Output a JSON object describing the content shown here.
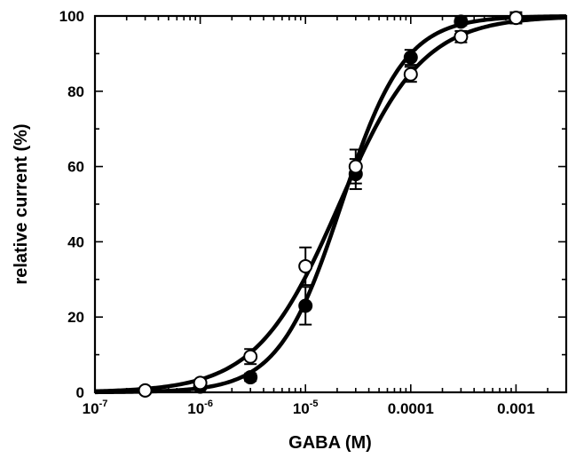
{
  "chart_data": {
    "type": "scatter",
    "title": "",
    "xlabel": "GABA  (M)",
    "ylabel": "relative current (%)",
    "xscale": "log",
    "xlim": [
      1e-07,
      0.003
    ],
    "ylim": [
      0,
      100
    ],
    "grid": false,
    "x_tick_labels": [
      {
        "value": 1e-07,
        "base": "10",
        "exp": "-7"
      },
      {
        "value": 1e-06,
        "base": "10",
        "exp": "-6"
      },
      {
        "value": 1e-05,
        "base": "10",
        "exp": "-5"
      },
      {
        "value": 0.0001,
        "base": "0.0001",
        "exp": ""
      },
      {
        "value": 0.001,
        "base": "0.001",
        "exp": ""
      }
    ],
    "y_tick_labels": [
      "0",
      "20",
      "40",
      "60",
      "80",
      "100"
    ],
    "series": [
      {
        "marker": "filled-circle",
        "points": [
          {
            "x": 3e-07,
            "y": 0.5,
            "err": 0
          },
          {
            "x": 1e-06,
            "y": 1.5,
            "err": 0
          },
          {
            "x": 3e-06,
            "y": 4,
            "err": 1
          },
          {
            "x": 1e-05,
            "y": 23,
            "err": 5
          },
          {
            "x": 3e-05,
            "y": 58,
            "err": 4
          },
          {
            "x": 0.0001,
            "y": 89,
            "err": 2
          },
          {
            "x": 0.0003,
            "y": 98.5,
            "err": 1
          },
          {
            "x": 0.001,
            "y": 99.5,
            "err": 1
          }
        ],
        "fit": {
          "ec50": 2.2e-05,
          "hill": 1.45,
          "bottom": 0,
          "top": 100
        }
      },
      {
        "marker": "open-circle",
        "points": [
          {
            "x": 3e-07,
            "y": 0.5,
            "err": 0
          },
          {
            "x": 1e-06,
            "y": 2.5,
            "err": 0
          },
          {
            "x": 3e-06,
            "y": 9.5,
            "err": 2
          },
          {
            "x": 1e-05,
            "y": 33.5,
            "err": 5
          },
          {
            "x": 3e-05,
            "y": 60,
            "err": 4.5
          },
          {
            "x": 0.0001,
            "y": 84.5,
            "err": 2
          },
          {
            "x": 0.0003,
            "y": 94.5,
            "err": 1.5
          },
          {
            "x": 0.001,
            "y": 99.5,
            "err": 1.5
          }
        ],
        "fit": {
          "ec50": 2.1e-05,
          "hill": 1.1,
          "bottom": 0,
          "top": 100
        }
      }
    ]
  }
}
